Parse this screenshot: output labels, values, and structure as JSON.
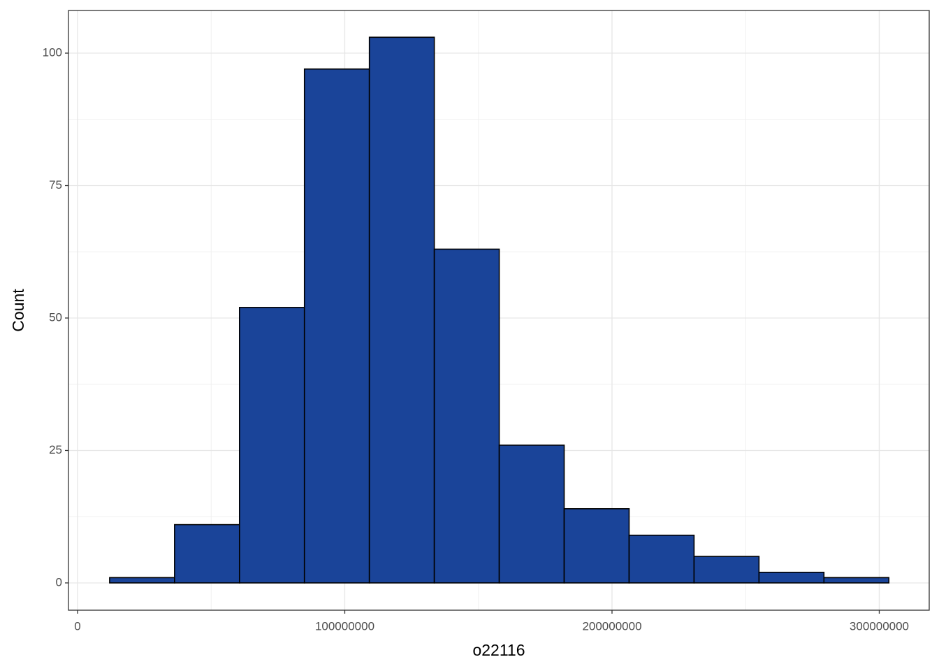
{
  "chart_data": {
    "type": "histogram",
    "x_label": "o22116",
    "y_label": "Count",
    "bins": [
      12000000,
      36300000,
      60600000,
      84900000,
      109200000,
      133500000,
      157800000,
      182100000,
      206400000,
      230700000,
      255000000,
      279300000,
      303600000
    ],
    "values": [
      1,
      11,
      52,
      97,
      103,
      63,
      26,
      14,
      9,
      5,
      2,
      1
    ],
    "color": "#1a4499",
    "edge_color": "#000000",
    "xlim": [
      -3400000,
      318700000
    ],
    "xticks": [
      0,
      100000000,
      200000000,
      300000000
    ],
    "ylim": [
      -5.15,
      108.05
    ],
    "yticks": [
      0,
      25,
      50,
      75,
      100
    ],
    "grid": true
  }
}
